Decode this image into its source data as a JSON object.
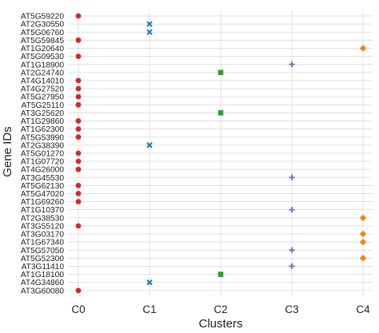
{
  "chart_data": {
    "type": "scatter",
    "title": "",
    "xlabel": "Clusters",
    "ylabel": "Gene IDs",
    "grid": true,
    "categories_x": [
      "C0",
      "C1",
      "C2",
      "C3",
      "C4"
    ],
    "categories_y": [
      "AT5G59220",
      "AT2G30550",
      "AT5G06760",
      "AT5G59845",
      "AT1G20640",
      "AT5G09530",
      "AT1G18900",
      "AT2G24740",
      "AT4G14010",
      "AT4G27520",
      "AT5G27950",
      "AT5G25110",
      "AT3G25620",
      "AT1G29860",
      "AT1G62300",
      "AT5G53990",
      "AT2G38390",
      "AT5G01270",
      "AT1G07720",
      "AT4G26000",
      "AT3G45530",
      "AT5G62130",
      "AT5G47020",
      "AT1G69260",
      "AT1G10370",
      "AT2G38530",
      "AT3G55120",
      "AT3G03170",
      "AT1G67340",
      "AT5G57050",
      "AT5G52300",
      "AT3G11410",
      "AT1G18100",
      "AT4G34860",
      "AT3G60080"
    ],
    "series": [
      {
        "cluster": "C0",
        "color": "#d62728",
        "marker": "circle",
        "points": [
          "AT5G59220",
          "AT5G59845",
          "AT5G09530",
          "AT4G14010",
          "AT4G27520",
          "AT5G27950",
          "AT5G25110",
          "AT1G29860",
          "AT1G62300",
          "AT5G53990",
          "AT5G01270",
          "AT1G07720",
          "AT4G26000",
          "AT5G62130",
          "AT5G47020",
          "AT1G69260",
          "AT3G55120",
          "AT3G60080"
        ]
      },
      {
        "cluster": "C1",
        "color": "#1f77b4",
        "marker": "x",
        "points": [
          "AT2G30550",
          "AT5G06760",
          "AT2G38390",
          "AT4G34860"
        ]
      },
      {
        "cluster": "C2",
        "color": "#2ca02c",
        "marker": "square",
        "points": [
          "AT2G24740",
          "AT3G25620",
          "AT1G18100"
        ]
      },
      {
        "cluster": "C3",
        "color": "#9467bd",
        "marker": "plus",
        "points": [
          "AT1G18900",
          "AT3G45530",
          "AT1G10370",
          "AT5G57050",
          "AT3G11410"
        ]
      },
      {
        "cluster": "C4",
        "color": "#ff7f0e",
        "marker": "diamond",
        "points": [
          "AT1G20640",
          "AT2G38530",
          "AT3G03170",
          "AT1G67340",
          "AT5G52300"
        ]
      }
    ]
  }
}
